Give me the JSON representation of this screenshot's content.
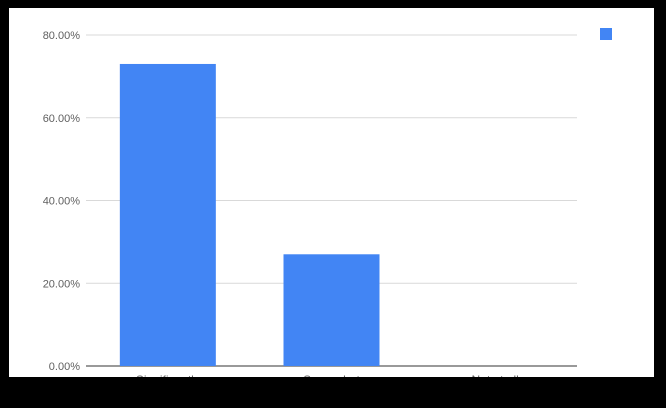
{
  "chart_data": {
    "type": "bar",
    "categories": [
      "Significantly",
      "Somewhat",
      "Not at all"
    ],
    "values": [
      73.0,
      27.0,
      0.0
    ],
    "yticks": [
      "0.00%",
      "20.00%",
      "40.00%",
      "60.00%",
      "80.00%"
    ],
    "ylim": [
      0,
      80
    ],
    "grid": true,
    "legend": {
      "position": "top-right",
      "entries": [
        {
          "name": "",
          "color": "#4285f4"
        }
      ]
    },
    "bar_color": "#4285f4"
  }
}
